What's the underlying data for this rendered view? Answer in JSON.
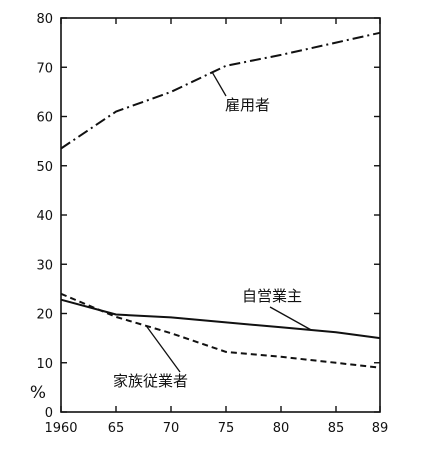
{
  "chart_data": {
    "type": "line",
    "title": "",
    "xlabel": "",
    "ylabel": "%",
    "x": [
      1960,
      1965,
      1970,
      1975,
      1980,
      1985,
      1989
    ],
    "x_tick_labels": [
      "1960",
      "65",
      "70",
      "75",
      "80",
      "85",
      "89"
    ],
    "xlim": [
      1960,
      1989
    ],
    "ylim": [
      0,
      80
    ],
    "y_ticks": [
      0,
      10,
      20,
      30,
      40,
      50,
      60,
      70,
      80
    ],
    "y_tick_labels": [
      "0",
      "10",
      "20",
      "30",
      "40",
      "50",
      "60",
      "70",
      "80"
    ],
    "grid": false,
    "legend": "none (labels placed next to lines)",
    "series": [
      {
        "name": "雇用者",
        "style": "dash-dot",
        "color": "#111111",
        "values": [
          53.5,
          61,
          65,
          70.3,
          72.5,
          75,
          77
        ]
      },
      {
        "name": "自営業主",
        "style": "solid",
        "color": "#111111",
        "values": [
          22.8,
          19.8,
          19.2,
          18.2,
          17.2,
          16.2,
          15
        ]
      },
      {
        "name": "家族従業者",
        "style": "dashed",
        "color": "#111111",
        "values": [
          24,
          19.3,
          16,
          12.2,
          11.2,
          10,
          9
        ]
      }
    ]
  }
}
